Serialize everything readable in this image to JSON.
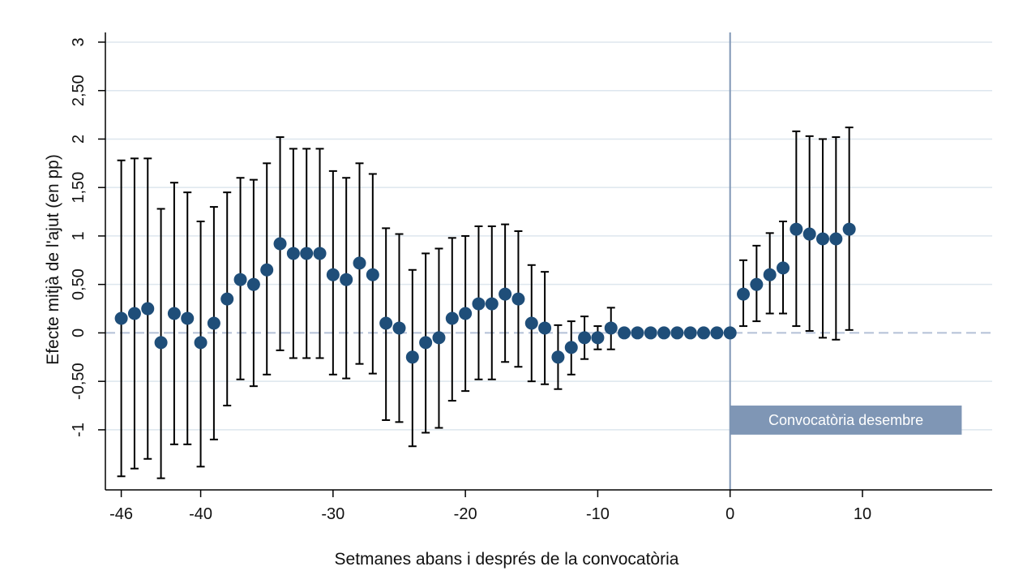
{
  "chart_data": {
    "type": "scatter",
    "title": "",
    "xlabel": "Setmanes abans i després de la convocatòria",
    "ylabel": "Efecte mitjà de l'ajut (en pp)",
    "xlim": [
      -47.2,
      19.8
    ],
    "ylim": [
      -1.62,
      3.1
    ],
    "xticks": [
      -46,
      -40,
      -30,
      -20,
      -10,
      0,
      10
    ],
    "xtick_labels": [
      "-46",
      "-40",
      "-30",
      "-20",
      "-10",
      "0",
      "10"
    ],
    "yticks": [
      -1,
      -0.5,
      0,
      0.5,
      1,
      1.5,
      2,
      2.5,
      3
    ],
    "ytick_labels": [
      "-1",
      "-0,50",
      "0",
      "0,50",
      "1",
      "1,50",
      "2",
      "2,50",
      "3"
    ],
    "grid": true,
    "reference_lines": {
      "horizontal_y": 0,
      "vertical_x": 0
    },
    "annotation": {
      "text": "Convocatòria desembre",
      "x_start": 0,
      "x_end": 17.5,
      "y_top": -0.75,
      "y_bottom": -1.05
    },
    "colors": {
      "marker": "#1f4e79",
      "errorbar": "#000000",
      "grid": "#dde6ee",
      "reference": "#7f96b5",
      "annotation_bg": "#7f96b5"
    },
    "points": [
      {
        "x": -46,
        "y": 0.15,
        "lo": -1.48,
        "hi": 1.78
      },
      {
        "x": -45,
        "y": 0.2,
        "lo": -1.4,
        "hi": 1.8
      },
      {
        "x": -44,
        "y": 0.25,
        "lo": -1.3,
        "hi": 1.8
      },
      {
        "x": -43,
        "y": -0.1,
        "lo": -1.5,
        "hi": 1.28
      },
      {
        "x": -42,
        "y": 0.2,
        "lo": -1.15,
        "hi": 1.55
      },
      {
        "x": -41,
        "y": 0.15,
        "lo": -1.15,
        "hi": 1.45
      },
      {
        "x": -40,
        "y": -0.1,
        "lo": -1.38,
        "hi": 1.15
      },
      {
        "x": -39,
        "y": 0.1,
        "lo": -1.1,
        "hi": 1.3
      },
      {
        "x": -38,
        "y": 0.35,
        "lo": -0.75,
        "hi": 1.45
      },
      {
        "x": -37,
        "y": 0.55,
        "lo": -0.48,
        "hi": 1.6
      },
      {
        "x": -36,
        "y": 0.5,
        "lo": -0.55,
        "hi": 1.58
      },
      {
        "x": -35,
        "y": 0.65,
        "lo": -0.43,
        "hi": 1.75
      },
      {
        "x": -34,
        "y": 0.92,
        "lo": -0.18,
        "hi": 2.02
      },
      {
        "x": -33,
        "y": 0.82,
        "lo": -0.26,
        "hi": 1.9
      },
      {
        "x": -32,
        "y": 0.82,
        "lo": -0.26,
        "hi": 1.9
      },
      {
        "x": -31,
        "y": 0.82,
        "lo": -0.26,
        "hi": 1.9
      },
      {
        "x": -30,
        "y": 0.6,
        "lo": -0.43,
        "hi": 1.67
      },
      {
        "x": -29,
        "y": 0.55,
        "lo": -0.47,
        "hi": 1.6
      },
      {
        "x": -28,
        "y": 0.72,
        "lo": -0.32,
        "hi": 1.75
      },
      {
        "x": -27,
        "y": 0.6,
        "lo": -0.42,
        "hi": 1.64
      },
      {
        "x": -26,
        "y": 0.1,
        "lo": -0.9,
        "hi": 1.08
      },
      {
        "x": -25,
        "y": 0.05,
        "lo": -0.92,
        "hi": 1.02
      },
      {
        "x": -24,
        "y": -0.25,
        "lo": -1.17,
        "hi": 0.65
      },
      {
        "x": -23,
        "y": -0.1,
        "lo": -1.03,
        "hi": 0.82
      },
      {
        "x": -22,
        "y": -0.05,
        "lo": -0.98,
        "hi": 0.87
      },
      {
        "x": -21,
        "y": 0.15,
        "lo": -0.7,
        "hi": 0.98
      },
      {
        "x": -20,
        "y": 0.2,
        "lo": -0.6,
        "hi": 1.0
      },
      {
        "x": -19,
        "y": 0.3,
        "lo": -0.48,
        "hi": 1.1
      },
      {
        "x": -18,
        "y": 0.3,
        "lo": -0.48,
        "hi": 1.1
      },
      {
        "x": -17,
        "y": 0.4,
        "lo": -0.3,
        "hi": 1.12
      },
      {
        "x": -16,
        "y": 0.35,
        "lo": -0.35,
        "hi": 1.05
      },
      {
        "x": -15,
        "y": 0.1,
        "lo": -0.5,
        "hi": 0.7
      },
      {
        "x": -14,
        "y": 0.05,
        "lo": -0.53,
        "hi": 0.63
      },
      {
        "x": -13,
        "y": -0.25,
        "lo": -0.58,
        "hi": 0.08
      },
      {
        "x": -12,
        "y": -0.15,
        "lo": -0.43,
        "hi": 0.12
      },
      {
        "x": -11,
        "y": -0.05,
        "lo": -0.27,
        "hi": 0.17
      },
      {
        "x": -10,
        "y": -0.05,
        "lo": -0.17,
        "hi": 0.07
      },
      {
        "x": -9,
        "y": 0.05,
        "lo": -0.17,
        "hi": 0.26
      },
      {
        "x": -8,
        "y": 0,
        "lo": 0,
        "hi": 0
      },
      {
        "x": -7,
        "y": 0,
        "lo": 0,
        "hi": 0
      },
      {
        "x": -6,
        "y": 0,
        "lo": 0,
        "hi": 0
      },
      {
        "x": -5,
        "y": 0,
        "lo": 0,
        "hi": 0
      },
      {
        "x": -4,
        "y": 0,
        "lo": 0,
        "hi": 0
      },
      {
        "x": -3,
        "y": 0,
        "lo": 0,
        "hi": 0
      },
      {
        "x": -2,
        "y": 0,
        "lo": 0,
        "hi": 0
      },
      {
        "x": -1,
        "y": 0,
        "lo": 0,
        "hi": 0
      },
      {
        "x": 0,
        "y": 0,
        "lo": 0,
        "hi": 0
      },
      {
        "x": 1,
        "y": 0.4,
        "lo": 0.07,
        "hi": 0.75
      },
      {
        "x": 2,
        "y": 0.5,
        "lo": 0.12,
        "hi": 0.9
      },
      {
        "x": 3,
        "y": 0.6,
        "lo": 0.2,
        "hi": 1.03
      },
      {
        "x": 4,
        "y": 0.67,
        "lo": 0.2,
        "hi": 1.15
      },
      {
        "x": 5,
        "y": 1.07,
        "lo": 0.07,
        "hi": 2.08
      },
      {
        "x": 6,
        "y": 1.02,
        "lo": 0.02,
        "hi": 2.03
      },
      {
        "x": 7,
        "y": 0.97,
        "lo": -0.05,
        "hi": 2.0
      },
      {
        "x": 8,
        "y": 0.97,
        "lo": -0.07,
        "hi": 2.02
      },
      {
        "x": 9,
        "y": 1.07,
        "lo": 0.03,
        "hi": 2.12
      }
    ]
  }
}
